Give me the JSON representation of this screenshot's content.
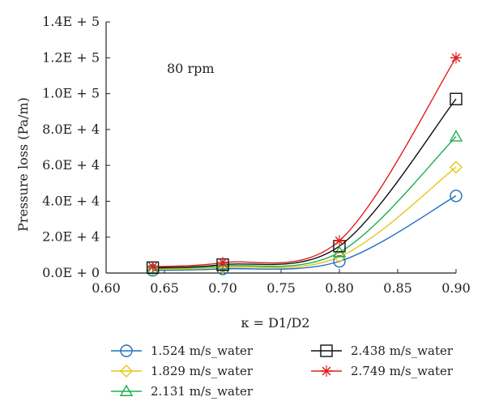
{
  "chart_data": {
    "type": "line",
    "title": "",
    "annotation": "80 rpm",
    "xlabel": "κ = D1/D2",
    "ylabel": "Pressure loss (Pa/m)",
    "xlim": [
      0.6,
      0.9
    ],
    "ylim": [
      0,
      140000
    ],
    "x_ticks": [
      0.6,
      0.65,
      0.7,
      0.75,
      0.8,
      0.85,
      0.9
    ],
    "x_tick_labels": [
      "0.60",
      "0.65",
      "0.70",
      "0.75",
      "0.80",
      "0.85",
      "0.90"
    ],
    "y_ticks": [
      0,
      20000,
      40000,
      60000,
      80000,
      100000,
      120000,
      140000
    ],
    "y_tick_labels": [
      "0.0E + 0",
      "2.0E + 4",
      "4.0E + 4",
      "6.0E + 4",
      "8.0E + 4",
      "1.0E + 5",
      "1.2E + 5",
      "1.4E + 5"
    ],
    "x": [
      0.64,
      0.7,
      0.8,
      0.9
    ],
    "grid": false,
    "legend_position": "bottom",
    "series": [
      {
        "name": "1.524 m/s_water",
        "marker": "circle",
        "color": "#1f6fbf",
        "values": [
          1500,
          2300,
          6500,
          43000
        ]
      },
      {
        "name": "1.829 m/s_water",
        "marker": "diamond",
        "color": "#e6c619",
        "values": [
          2100,
          3100,
          9000,
          59000
        ]
      },
      {
        "name": "2.131 m/s_water",
        "marker": "triangle",
        "color": "#1fae4f",
        "values": [
          2600,
          3900,
          11500,
          76000
        ]
      },
      {
        "name": "2.438 m/s_water",
        "marker": "square",
        "color": "#111111",
        "values": [
          3000,
          4700,
          15000,
          97000
        ]
      },
      {
        "name": "2.749 m/s_water",
        "marker": "star",
        "color": "#e02020",
        "values": [
          3500,
          5800,
          18000,
          120000
        ]
      }
    ]
  }
}
